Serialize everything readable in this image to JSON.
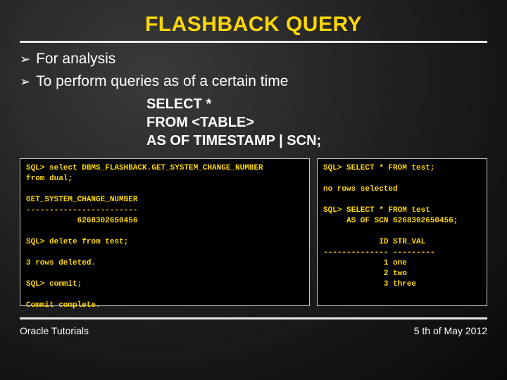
{
  "title": "FLASHBACK QUERY",
  "title_color": "#ffd700",
  "bullets": [
    "For analysis",
    "To perform queries as of a certain time"
  ],
  "code_block": {
    "lines": [
      "SELECT *",
      "FROM <TABLE>",
      "AS OF TIMESTAMP | SCN;"
    ]
  },
  "terminal_left": {
    "text_color": "#ffd700",
    "background": "#000000",
    "font": "Courier New",
    "content": "SQL> select DBMS_FLASHBACK.GET_SYSTEM_CHANGE_NUMBER\nfrom dual;\n\nGET_SYSTEM_CHANGE_NUMBER\n------------------------\n           6268302650456\n\nSQL> delete from test;\n\n3 rows deleted.\n\nSQL> commit;\n\nCommit complete."
  },
  "terminal_right": {
    "text_color": "#ffd700",
    "background": "#000000",
    "font": "Courier New",
    "content": "SQL> SELECT * FROM test;\n\nno rows selected\n\nSQL> SELECT * FROM test\n     AS OF SCN 6268302650456;\n\n            ID STR_VAL\n-------------- ---------\n             1 one\n             2 two\n             3 three"
  },
  "footer": {
    "left": "Oracle Tutorials",
    "right": "5 th of May 2012"
  },
  "styling": {
    "slide_width": 720,
    "slide_height": 540,
    "background_gradient": [
      "#3a3a3a",
      "#1a1a1a",
      "#0a0a0a"
    ],
    "rule_color": "#e8e8e8",
    "rule_thickness": 3,
    "title_fontsize": 30,
    "bullet_fontsize": 21,
    "code_fontsize": 20,
    "terminal_fontsize": 11,
    "footer_fontsize": 14
  }
}
